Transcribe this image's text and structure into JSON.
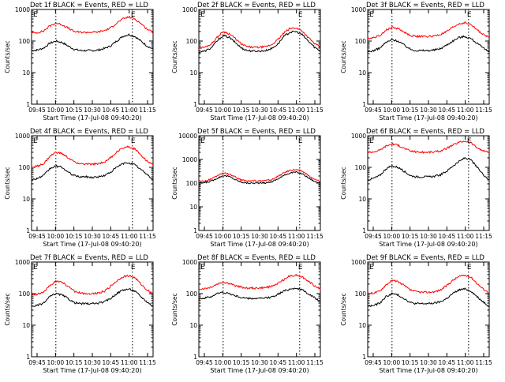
{
  "colors": {
    "events": "#000000",
    "lld": "#ff0000",
    "background": "#ffffff",
    "axes": "#000000"
  },
  "shared": {
    "ylabel": "Counts/sec",
    "xlabel": "Start Time (17-Jul-08 09:40:20)",
    "y_ticks": [
      "1",
      "10",
      "100",
      "1000"
    ],
    "x_ticks": [
      "09:45",
      "10:00",
      "10:15",
      "10:30",
      "10:45",
      "11:00",
      "11:15"
    ],
    "e_mark": "E"
  },
  "chart_data": [
    {
      "type": "line",
      "title": "Det 1f BLACK = Events, RED = LLD",
      "yscale": "log",
      "ylim": [
        1,
        1000
      ],
      "xlim": [
        0,
        100
      ],
      "x": [
        0,
        5,
        10,
        15,
        20,
        25,
        30,
        35,
        40,
        45,
        50,
        55,
        60,
        65,
        70,
        75,
        80,
        85,
        90,
        95,
        100
      ],
      "series": [
        {
          "name": "BLACK = Events",
          "values": [
            50,
            52,
            60,
            85,
            100,
            90,
            70,
            55,
            50,
            50,
            50,
            52,
            58,
            70,
            100,
            140,
            160,
            140,
            100,
            70,
            55
          ]
        },
        {
          "name": "RED = LLD",
          "values": [
            180,
            185,
            210,
            300,
            370,
            330,
            260,
            200,
            190,
            190,
            190,
            195,
            215,
            260,
            370,
            500,
            580,
            500,
            360,
            240,
            190
          ]
        }
      ]
    },
    {
      "type": "line",
      "title": "Det 2f BLACK = Events, RED = LLD",
      "yscale": "log",
      "ylim": [
        1,
        1000
      ],
      "xlim": [
        0,
        100
      ],
      "x": [
        0,
        5,
        10,
        15,
        20,
        25,
        30,
        35,
        40,
        45,
        50,
        55,
        60,
        65,
        70,
        75,
        80,
        85,
        90,
        95,
        100
      ],
      "series": [
        {
          "name": "BLACK = Events",
          "values": [
            45,
            48,
            60,
            100,
            150,
            130,
            90,
            60,
            50,
            48,
            48,
            50,
            58,
            80,
            140,
            190,
            200,
            160,
            100,
            65,
            48
          ]
        },
        {
          "name": "RED = LLD",
          "values": [
            60,
            64,
            80,
            130,
            200,
            170,
            120,
            80,
            66,
            63,
            63,
            66,
            77,
            110,
            180,
            250,
            260,
            210,
            130,
            85,
            62
          ]
        }
      ]
    },
    {
      "type": "line",
      "title": "Det 3f BLACK = Events, RED = LLD",
      "yscale": "log",
      "ylim": [
        1,
        1000
      ],
      "xlim": [
        0,
        100
      ],
      "x": [
        0,
        5,
        10,
        15,
        20,
        25,
        30,
        35,
        40,
        45,
        50,
        55,
        60,
        65,
        70,
        75,
        80,
        85,
        90,
        95,
        100
      ],
      "series": [
        {
          "name": "BLACK = Events",
          "values": [
            45,
            50,
            60,
            90,
            110,
            100,
            75,
            55,
            50,
            50,
            50,
            52,
            58,
            75,
            100,
            130,
            140,
            120,
            85,
            60,
            45
          ]
        },
        {
          "name": "RED = LLD",
          "values": [
            120,
            130,
            150,
            220,
            270,
            250,
            190,
            150,
            140,
            140,
            140,
            145,
            160,
            200,
            270,
            350,
            380,
            330,
            230,
            160,
            130
          ]
        }
      ]
    },
    {
      "type": "line",
      "title": "Det 4f BLACK = Events, RED = LLD",
      "yscale": "log",
      "ylim": [
        1,
        1000
      ],
      "xlim": [
        0,
        100
      ],
      "x": [
        0,
        5,
        10,
        15,
        20,
        25,
        30,
        35,
        40,
        45,
        50,
        55,
        60,
        65,
        70,
        75,
        80,
        85,
        90,
        95,
        100
      ],
      "series": [
        {
          "name": "BLACK = Events",
          "values": [
            40,
            45,
            55,
            90,
            110,
            100,
            70,
            55,
            50,
            50,
            48,
            50,
            55,
            70,
            100,
            130,
            140,
            120,
            85,
            60,
            40
          ]
        },
        {
          "name": "RED = LLD",
          "values": [
            100,
            110,
            130,
            220,
            300,
            270,
            200,
            150,
            130,
            125,
            125,
            130,
            150,
            200,
            300,
            420,
            450,
            380,
            250,
            160,
            120
          ]
        }
      ]
    },
    {
      "type": "line",
      "title": "Det 5f BLACK = Events, RED = LLD",
      "yscale": "log",
      "ylim": [
        1,
        10000
      ],
      "xlim": [
        0,
        100
      ],
      "x": [
        0,
        5,
        10,
        15,
        20,
        25,
        30,
        35,
        40,
        45,
        50,
        55,
        60,
        65,
        70,
        75,
        80,
        85,
        90,
        95,
        100
      ],
      "series": [
        {
          "name": "BLACK = Events",
          "values": [
            100,
            105,
            120,
            160,
            210,
            190,
            140,
            110,
            100,
            100,
            100,
            102,
            115,
            150,
            210,
            270,
            290,
            250,
            170,
            120,
            100
          ]
        },
        {
          "name": "RED = LLD",
          "values": [
            120,
            125,
            145,
            200,
            270,
            240,
            180,
            135,
            125,
            125,
            125,
            128,
            140,
            190,
            270,
            350,
            370,
            320,
            210,
            145,
            120
          ]
        }
      ]
    },
    {
      "type": "line",
      "title": "Det 6f BLACK = Events, RED = LLD",
      "yscale": "log",
      "ylim": [
        1,
        1000
      ],
      "xlim": [
        0,
        100
      ],
      "x": [
        0,
        5,
        10,
        15,
        20,
        25,
        30,
        35,
        40,
        45,
        50,
        55,
        60,
        65,
        70,
        75,
        80,
        85,
        90,
        95,
        100
      ],
      "series": [
        {
          "name": "BLACK = Events",
          "values": [
            40,
            45,
            55,
            90,
            110,
            100,
            75,
            55,
            50,
            50,
            50,
            52,
            58,
            75,
            110,
            150,
            200,
            170,
            100,
            60,
            40
          ]
        },
        {
          "name": "RED = LLD",
          "values": [
            300,
            310,
            350,
            470,
            550,
            500,
            400,
            330,
            310,
            300,
            300,
            310,
            330,
            400,
            500,
            620,
            680,
            600,
            420,
            330,
            300
          ]
        }
      ]
    },
    {
      "type": "line",
      "title": "Det 7f BLACK = Events, RED = LLD",
      "yscale": "log",
      "ylim": [
        1,
        1000
      ],
      "xlim": [
        0,
        100
      ],
      "x": [
        0,
        5,
        10,
        15,
        20,
        25,
        30,
        35,
        40,
        45,
        50,
        55,
        60,
        65,
        70,
        75,
        80,
        85,
        90,
        95,
        100
      ],
      "series": [
        {
          "name": "BLACK = Events",
          "values": [
            40,
            42,
            50,
            80,
            100,
            90,
            70,
            52,
            48,
            48,
            48,
            50,
            55,
            70,
            100,
            130,
            140,
            120,
            80,
            55,
            40
          ]
        },
        {
          "name": "RED = LLD",
          "values": [
            90,
            95,
            110,
            180,
            250,
            230,
            170,
            120,
            105,
            100,
            100,
            105,
            120,
            170,
            250,
            340,
            370,
            320,
            200,
            130,
            100
          ]
        }
      ]
    },
    {
      "type": "line",
      "title": "Det 8f BLACK = Events, RED = LLD",
      "yscale": "log",
      "ylim": [
        1,
        1000
      ],
      "xlim": [
        0,
        100
      ],
      "x": [
        0,
        5,
        10,
        15,
        20,
        25,
        30,
        35,
        40,
        45,
        50,
        55,
        60,
        65,
        70,
        75,
        80,
        85,
        90,
        95,
        100
      ],
      "series": [
        {
          "name": "BLACK = Events",
          "values": [
            70,
            72,
            80,
            100,
            110,
            100,
            85,
            75,
            70,
            70,
            70,
            72,
            78,
            95,
            120,
            140,
            150,
            130,
            100,
            75,
            55
          ]
        },
        {
          "name": "RED = LLD",
          "values": [
            140,
            145,
            160,
            200,
            230,
            210,
            180,
            160,
            150,
            150,
            150,
            155,
            170,
            210,
            280,
            360,
            390,
            340,
            250,
            180,
            140
          ]
        }
      ]
    },
    {
      "type": "line",
      "title": "Det 9f BLACK = Events, RED = LLD",
      "yscale": "log",
      "ylim": [
        1,
        1000
      ],
      "xlim": [
        0,
        100
      ],
      "x": [
        0,
        5,
        10,
        15,
        20,
        25,
        30,
        35,
        40,
        45,
        50,
        55,
        60,
        65,
        70,
        75,
        80,
        85,
        90,
        95,
        100
      ],
      "series": [
        {
          "name": "BLACK = Events",
          "values": [
            40,
            42,
            50,
            80,
            100,
            90,
            70,
            52,
            48,
            48,
            48,
            50,
            55,
            70,
            100,
            130,
            140,
            120,
            80,
            55,
            40
          ]
        },
        {
          "name": "RED = LLD",
          "values": [
            100,
            105,
            120,
            190,
            260,
            240,
            180,
            130,
            115,
            110,
            110,
            115,
            130,
            180,
            260,
            350,
            380,
            330,
            210,
            140,
            105
          ]
        }
      ]
    }
  ]
}
